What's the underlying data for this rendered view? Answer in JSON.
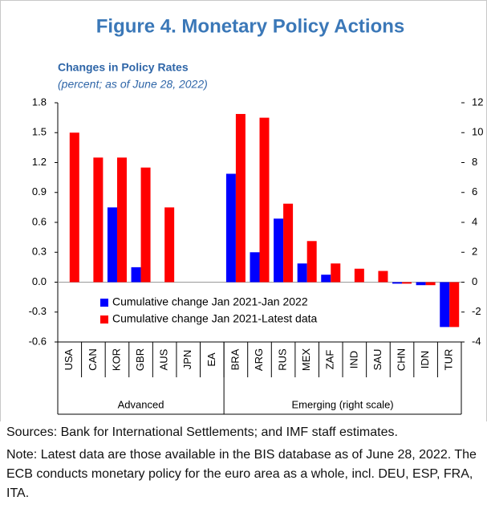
{
  "chart_data": {
    "type": "bar",
    "title": "Figure 4. Monetary Policy Actions",
    "subtitle": "Changes in Policy Rates",
    "unit_note": "(percent; as of June 28, 2022)",
    "categories": [
      "USA",
      "CAN",
      "KOR",
      "GBR",
      "AUS",
      "JPN",
      "EA",
      "BRA",
      "ARG",
      "RUS",
      "MEX",
      "ZAF",
      "IND",
      "SAU",
      "CHN",
      "IDN",
      "TUR"
    ],
    "groups": [
      {
        "name": "Advanced",
        "size": 7,
        "axis": "y"
      },
      {
        "name": "Emerging (right scale)",
        "size": 10,
        "axis": "y2"
      }
    ],
    "series": [
      {
        "name": "Cumulative change Jan 2021-Jan 2022",
        "color": "#0000ff",
        "values": [
          0,
          0,
          0.75,
          0.15,
          0,
          0,
          0,
          7.25,
          2.0,
          4.25,
          1.25,
          0.5,
          0,
          0,
          -0.1,
          -0.2,
          -3.0
        ]
      },
      {
        "name": "Cumulative change Jan 2021-Latest data",
        "color": "#ff0000",
        "values": [
          1.5,
          1.25,
          1.25,
          1.15,
          0.75,
          0,
          0,
          11.25,
          11.0,
          5.25,
          2.75,
          1.25,
          0.9,
          0.75,
          -0.1,
          -0.2,
          -3.0
        ]
      }
    ],
    "ylim": [
      -0.6,
      1.8
    ],
    "yticks": [
      -0.6,
      -0.3,
      {
        "value": 0,
        "label": "0.0"
      },
      0.3,
      0.6,
      0.9,
      1.2,
      1.5,
      1.8
    ],
    "y2lim": [
      -4,
      12
    ],
    "y2ticks": [
      -4,
      -2,
      0,
      2,
      4,
      6,
      8,
      10,
      12
    ],
    "legend_position": "lower left"
  },
  "footer": {
    "sources": "Sources: Bank for International Settlements;  and IMF staff estimates.",
    "note": "Note: Latest data are those available in the BIS database as of June 28, 2022. The ECB conducts monetary policy for the euro area as a whole, incl. DEU, ESP, FRA, ITA."
  }
}
